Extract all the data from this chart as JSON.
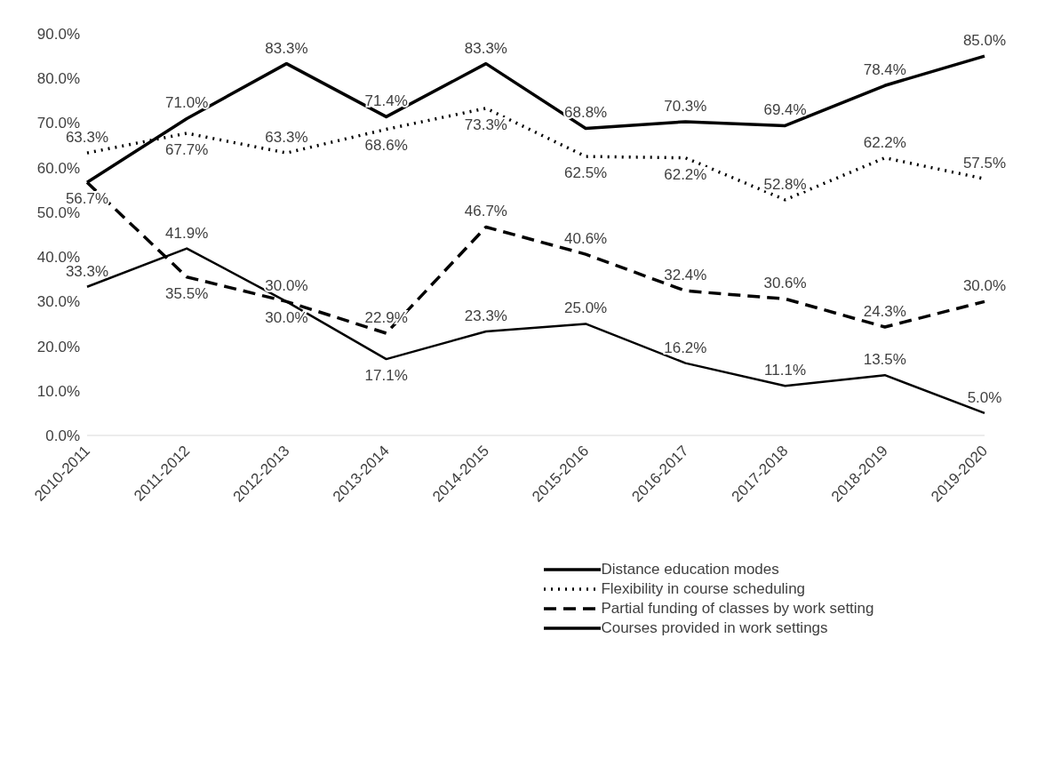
{
  "chart_data": {
    "type": "line",
    "categories": [
      "2010-2011",
      "2011-2012",
      "2012-2013",
      "2013-2014",
      "2014-2015",
      "2015-2016",
      "2016-2017",
      "2017-2018",
      "2018-2019",
      "2019-2020"
    ],
    "series": [
      {
        "name": "Distance education modes",
        "color": "#000000",
        "line_style": "solid",
        "values": [
          56.7,
          71.0,
          83.3,
          71.4,
          83.3,
          68.8,
          70.3,
          69.4,
          78.4,
          85.0
        ],
        "value_labels": [
          "56.7%",
          "71.0%",
          "83.3%",
          "71.4%",
          "83.3%",
          "68.8%",
          "70.3%",
          "69.4%",
          "78.4%",
          "85.0%"
        ]
      },
      {
        "name": "Flexibility in course scheduling",
        "color": "#000000",
        "line_style": "dotted",
        "values": [
          63.3,
          67.7,
          63.3,
          68.6,
          73.3,
          62.5,
          62.2,
          52.8,
          62.2,
          57.5
        ],
        "value_labels": [
          "63.3%",
          "67.7%",
          "63.3%",
          "68.6%",
          "73.3%",
          "62.5%",
          "62.2%",
          "52.8%",
          "62.2%",
          "57.5%"
        ]
      },
      {
        "name": "Partial funding of classes by work setting",
        "color": "#000000",
        "line_style": "dashed",
        "values": [
          56.7,
          35.5,
          30.0,
          22.9,
          46.7,
          40.6,
          32.4,
          30.6,
          24.3,
          30.0
        ],
        "value_labels": [
          null,
          "35.5%",
          "30.0%",
          "22.9%",
          "46.7%",
          "40.6%",
          "32.4%",
          "30.6%",
          "24.3%",
          "30.0%"
        ]
      },
      {
        "name": "Courses provided in work settings",
        "color": "#000000",
        "line_style": "solid",
        "values": [
          33.3,
          41.9,
          30.0,
          17.1,
          23.3,
          25.0,
          16.2,
          11.1,
          13.5,
          5.0
        ],
        "value_labels": [
          "33.3%",
          "41.9%",
          "30.0%",
          "17.1%",
          "23.3%",
          "25.0%",
          "16.2%",
          "11.1%",
          "13.5%",
          "5.0%"
        ]
      }
    ],
    "ylim": [
      0,
      90
    ],
    "yticks": [
      {
        "value": 0,
        "label": "0.0%"
      },
      {
        "value": 10,
        "label": "10.0%"
      },
      {
        "value": 20,
        "label": "20.0%"
      },
      {
        "value": 30,
        "label": "30.0%"
      },
      {
        "value": 40,
        "label": "40.0%"
      },
      {
        "value": 50,
        "label": "50.0%"
      },
      {
        "value": 60,
        "label": "60.0%"
      },
      {
        "value": 70,
        "label": "70.0%"
      },
      {
        "value": 80,
        "label": "80.0%"
      },
      {
        "value": 90,
        "label": "90.0%"
      }
    ],
    "grid": false,
    "legend": "bottom",
    "marker": "none"
  }
}
